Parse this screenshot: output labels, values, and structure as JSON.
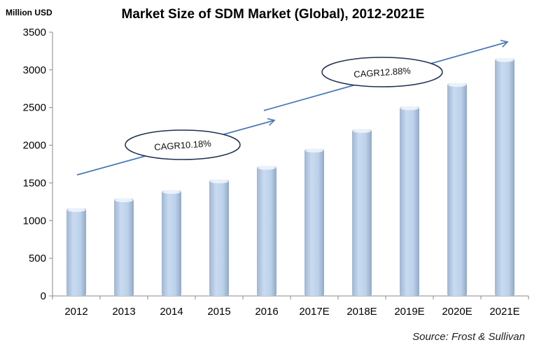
{
  "chart_data": {
    "type": "bar",
    "title": "Market Size of SDM Market (Global), 2012-2021E",
    "ylabel": "Million USD",
    "xlabel": "",
    "categories": [
      "2012",
      "2013",
      "2014",
      "2015",
      "2016",
      "2017E",
      "2018E",
      "2019E",
      "2020E",
      "2021E"
    ],
    "values": [
      1160,
      1290,
      1400,
      1540,
      1720,
      1950,
      2210,
      2510,
      2820,
      3150
    ],
    "ylim": [
      0,
      3500
    ],
    "yticks": [
      0,
      500,
      1000,
      1500,
      2000,
      2500,
      3000,
      3500
    ],
    "grid": false,
    "legend": "none",
    "bar_color": "#b9d0ea",
    "annotations": [
      {
        "text": "CAGR10.18%",
        "from_category": "2012",
        "to_category": "2016"
      },
      {
        "text": "CAGR12.88%",
        "from_category": "2016",
        "to_category": "2021E"
      }
    ],
    "arrow_color": "#4a7ab8",
    "source": "Source: Frost & Sullivan"
  }
}
